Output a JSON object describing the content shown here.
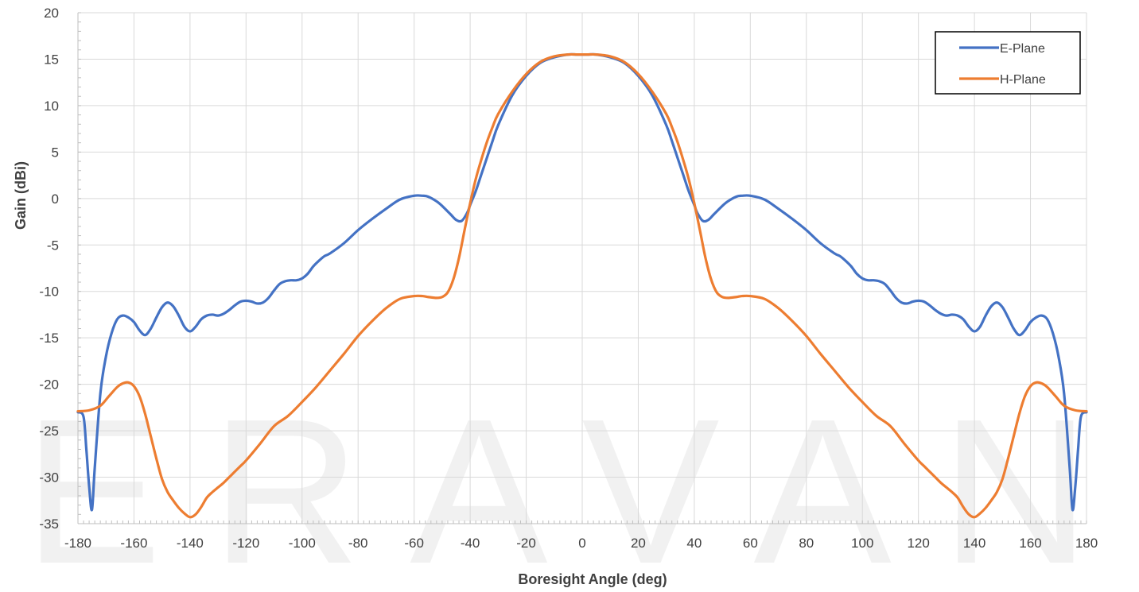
{
  "watermark": "ERAVANT",
  "chart_data": {
    "type": "line",
    "xlabel": "Boresight Angle (deg)",
    "ylabel": "Gain (dBi)",
    "xlim": [
      -180,
      180
    ],
    "ylim": [
      -35,
      20
    ],
    "xticks": [
      -180,
      -160,
      -140,
      -120,
      -100,
      -80,
      -60,
      -40,
      -20,
      0,
      20,
      40,
      60,
      80,
      100,
      120,
      140,
      160,
      180
    ],
    "yticks": [
      20,
      15,
      10,
      5,
      0,
      -5,
      -10,
      -15,
      -20,
      -25,
      -30,
      -35
    ],
    "grid": true,
    "legend_position": "top-right",
    "colors": {
      "E-Plane": "#4472C4",
      "H-Plane": "#ED7D31"
    },
    "series": [
      {
        "name": "E-Plane",
        "x": [
          -180,
          -178,
          -177,
          -176,
          -175,
          -174,
          -172,
          -170,
          -168,
          -166,
          -164,
          -162,
          -160,
          -158,
          -156,
          -154,
          -152,
          -150,
          -148,
          -146,
          -144,
          -142,
          -140,
          -138,
          -136,
          -134,
          -132,
          -130,
          -128,
          -126,
          -124,
          -122,
          -120,
          -118,
          -116,
          -114,
          -112,
          -110,
          -108,
          -106,
          -104,
          -102,
          -100,
          -98,
          -96,
          -94,
          -92,
          -90,
          -85,
          -80,
          -75,
          -70,
          -65,
          -60,
          -57,
          -55,
          -52,
          -50,
          -47,
          -45,
          -43,
          -41,
          -40,
          -38,
          -36,
          -34,
          -32,
          -30,
          -25,
          -20,
          -15,
          -10,
          -5,
          -2,
          0,
          2,
          5,
          10,
          15,
          20,
          25,
          30,
          32,
          34,
          36,
          38,
          40,
          41,
          43,
          45,
          47,
          50,
          52,
          55,
          57,
          60,
          65,
          70,
          75,
          80,
          85,
          90,
          92,
          94,
          96,
          98,
          100,
          102,
          104,
          106,
          108,
          110,
          112,
          114,
          116,
          118,
          120,
          122,
          124,
          126,
          128,
          130,
          132,
          134,
          136,
          138,
          140,
          142,
          144,
          146,
          148,
          150,
          152,
          154,
          156,
          158,
          160,
          162,
          164,
          166,
          168,
          170,
          172,
          174,
          175,
          176,
          177,
          178,
          180
        ],
        "values": [
          -23,
          -23.5,
          -27,
          -31,
          -33.5,
          -29,
          -21,
          -17,
          -14.5,
          -13,
          -12.6,
          -12.8,
          -13.3,
          -14.2,
          -14.7,
          -14,
          -12.8,
          -11.7,
          -11.2,
          -11.6,
          -12.6,
          -13.8,
          -14.3,
          -13.8,
          -13,
          -12.6,
          -12.5,
          -12.6,
          -12.4,
          -12,
          -11.5,
          -11.1,
          -11,
          -11.1,
          -11.3,
          -11.2,
          -10.7,
          -9.9,
          -9.2,
          -8.9,
          -8.8,
          -8.8,
          -8.6,
          -8.1,
          -7.3,
          -6.7,
          -6.2,
          -5.9,
          -4.8,
          -3.4,
          -2.2,
          -1.1,
          -0.1,
          0.3,
          0.3,
          0.2,
          -0.3,
          -0.8,
          -1.7,
          -2.3,
          -2.4,
          -1.5,
          -0.7,
          0.8,
          2.6,
          4.4,
          6.2,
          7.9,
          11.1,
          13.2,
          14.6,
          15.2,
          15.5,
          15.5,
          15.5,
          15.5,
          15.5,
          15.2,
          14.6,
          13.2,
          11.1,
          7.9,
          6.2,
          4.4,
          2.6,
          0.8,
          -0.7,
          -1.5,
          -2.4,
          -2.3,
          -1.7,
          -0.8,
          -0.3,
          0.2,
          0.3,
          0.3,
          -0.1,
          -1.1,
          -2.2,
          -3.4,
          -4.8,
          -5.9,
          -6.2,
          -6.7,
          -7.3,
          -8.1,
          -8.6,
          -8.8,
          -8.8,
          -8.9,
          -9.2,
          -9.9,
          -10.7,
          -11.2,
          -11.3,
          -11.1,
          -11,
          -11.1,
          -11.5,
          -12,
          -12.4,
          -12.6,
          -12.5,
          -12.6,
          -13,
          -13.8,
          -14.3,
          -13.8,
          -12.6,
          -11.6,
          -11.2,
          -11.7,
          -12.8,
          -14,
          -14.7,
          -14.2,
          -13.3,
          -12.8,
          -12.6,
          -13,
          -14.5,
          -17,
          -21,
          -29,
          -33.5,
          -31,
          -27,
          -23.5,
          -23
        ]
      },
      {
        "name": "H-Plane",
        "x": [
          -180,
          -176,
          -172,
          -169,
          -166,
          -164,
          -162,
          -160,
          -158,
          -156,
          -154,
          -152,
          -150,
          -148,
          -146,
          -144,
          -142,
          -140,
          -138,
          -136,
          -134,
          -132,
          -130,
          -128,
          -126,
          -124,
          -122,
          -120,
          -115,
          -110,
          -105,
          -100,
          -95,
          -90,
          -85,
          -80,
          -75,
          -70,
          -65,
          -60,
          -57,
          -55,
          -52,
          -50,
          -48,
          -46,
          -44,
          -42,
          -40,
          -38,
          -36,
          -34,
          -32,
          -30,
          -25,
          -20,
          -15,
          -10,
          -5,
          -2,
          0,
          2,
          5,
          10,
          15,
          20,
          25,
          30,
          32,
          34,
          36,
          38,
          40,
          42,
          44,
          46,
          48,
          50,
          52,
          55,
          57,
          60,
          65,
          70,
          75,
          80,
          85,
          90,
          95,
          100,
          105,
          110,
          115,
          120,
          122,
          124,
          126,
          128,
          130,
          132,
          134,
          136,
          138,
          140,
          142,
          144,
          146,
          148,
          150,
          152,
          154,
          156,
          158,
          160,
          162,
          164,
          166,
          169,
          172,
          176,
          180
        ],
        "values": [
          -22.9,
          -22.8,
          -22.3,
          -21.3,
          -20.3,
          -19.9,
          -19.8,
          -20.2,
          -21.3,
          -23.2,
          -25.6,
          -28,
          -30.2,
          -31.6,
          -32.5,
          -33.3,
          -33.9,
          -34.3,
          -34,
          -33.2,
          -32.2,
          -31.6,
          -31.1,
          -30.6,
          -30,
          -29.4,
          -28.8,
          -28.2,
          -26.4,
          -24.5,
          -23.4,
          -21.9,
          -20.3,
          -18.5,
          -16.7,
          -14.8,
          -13.2,
          -11.8,
          -10.8,
          -10.5,
          -10.5,
          -10.6,
          -10.7,
          -10.6,
          -10.1,
          -8.7,
          -6.4,
          -3.4,
          -0.5,
          2.1,
          4.2,
          6.1,
          7.7,
          9.1,
          11.5,
          13.4,
          14.7,
          15.3,
          15.5,
          15.5,
          15.5,
          15.5,
          15.5,
          15.3,
          14.7,
          13.4,
          11.5,
          9.1,
          7.7,
          6.1,
          4.2,
          2.1,
          -0.5,
          -3.4,
          -6.4,
          -8.7,
          -10.1,
          -10.6,
          -10.7,
          -10.6,
          -10.5,
          -10.5,
          -10.8,
          -11.8,
          -13.2,
          -14.8,
          -16.7,
          -18.5,
          -20.3,
          -21.9,
          -23.4,
          -24.5,
          -26.4,
          -28.2,
          -28.8,
          -29.4,
          -30,
          -30.6,
          -31.1,
          -31.6,
          -32.2,
          -33.2,
          -34,
          -34.3,
          -33.9,
          -33.3,
          -32.5,
          -31.6,
          -30.2,
          -28,
          -25.6,
          -23.2,
          -21.3,
          -20.2,
          -19.8,
          -19.9,
          -20.3,
          -21.3,
          -22.3,
          -22.8,
          -22.9
        ]
      }
    ]
  }
}
